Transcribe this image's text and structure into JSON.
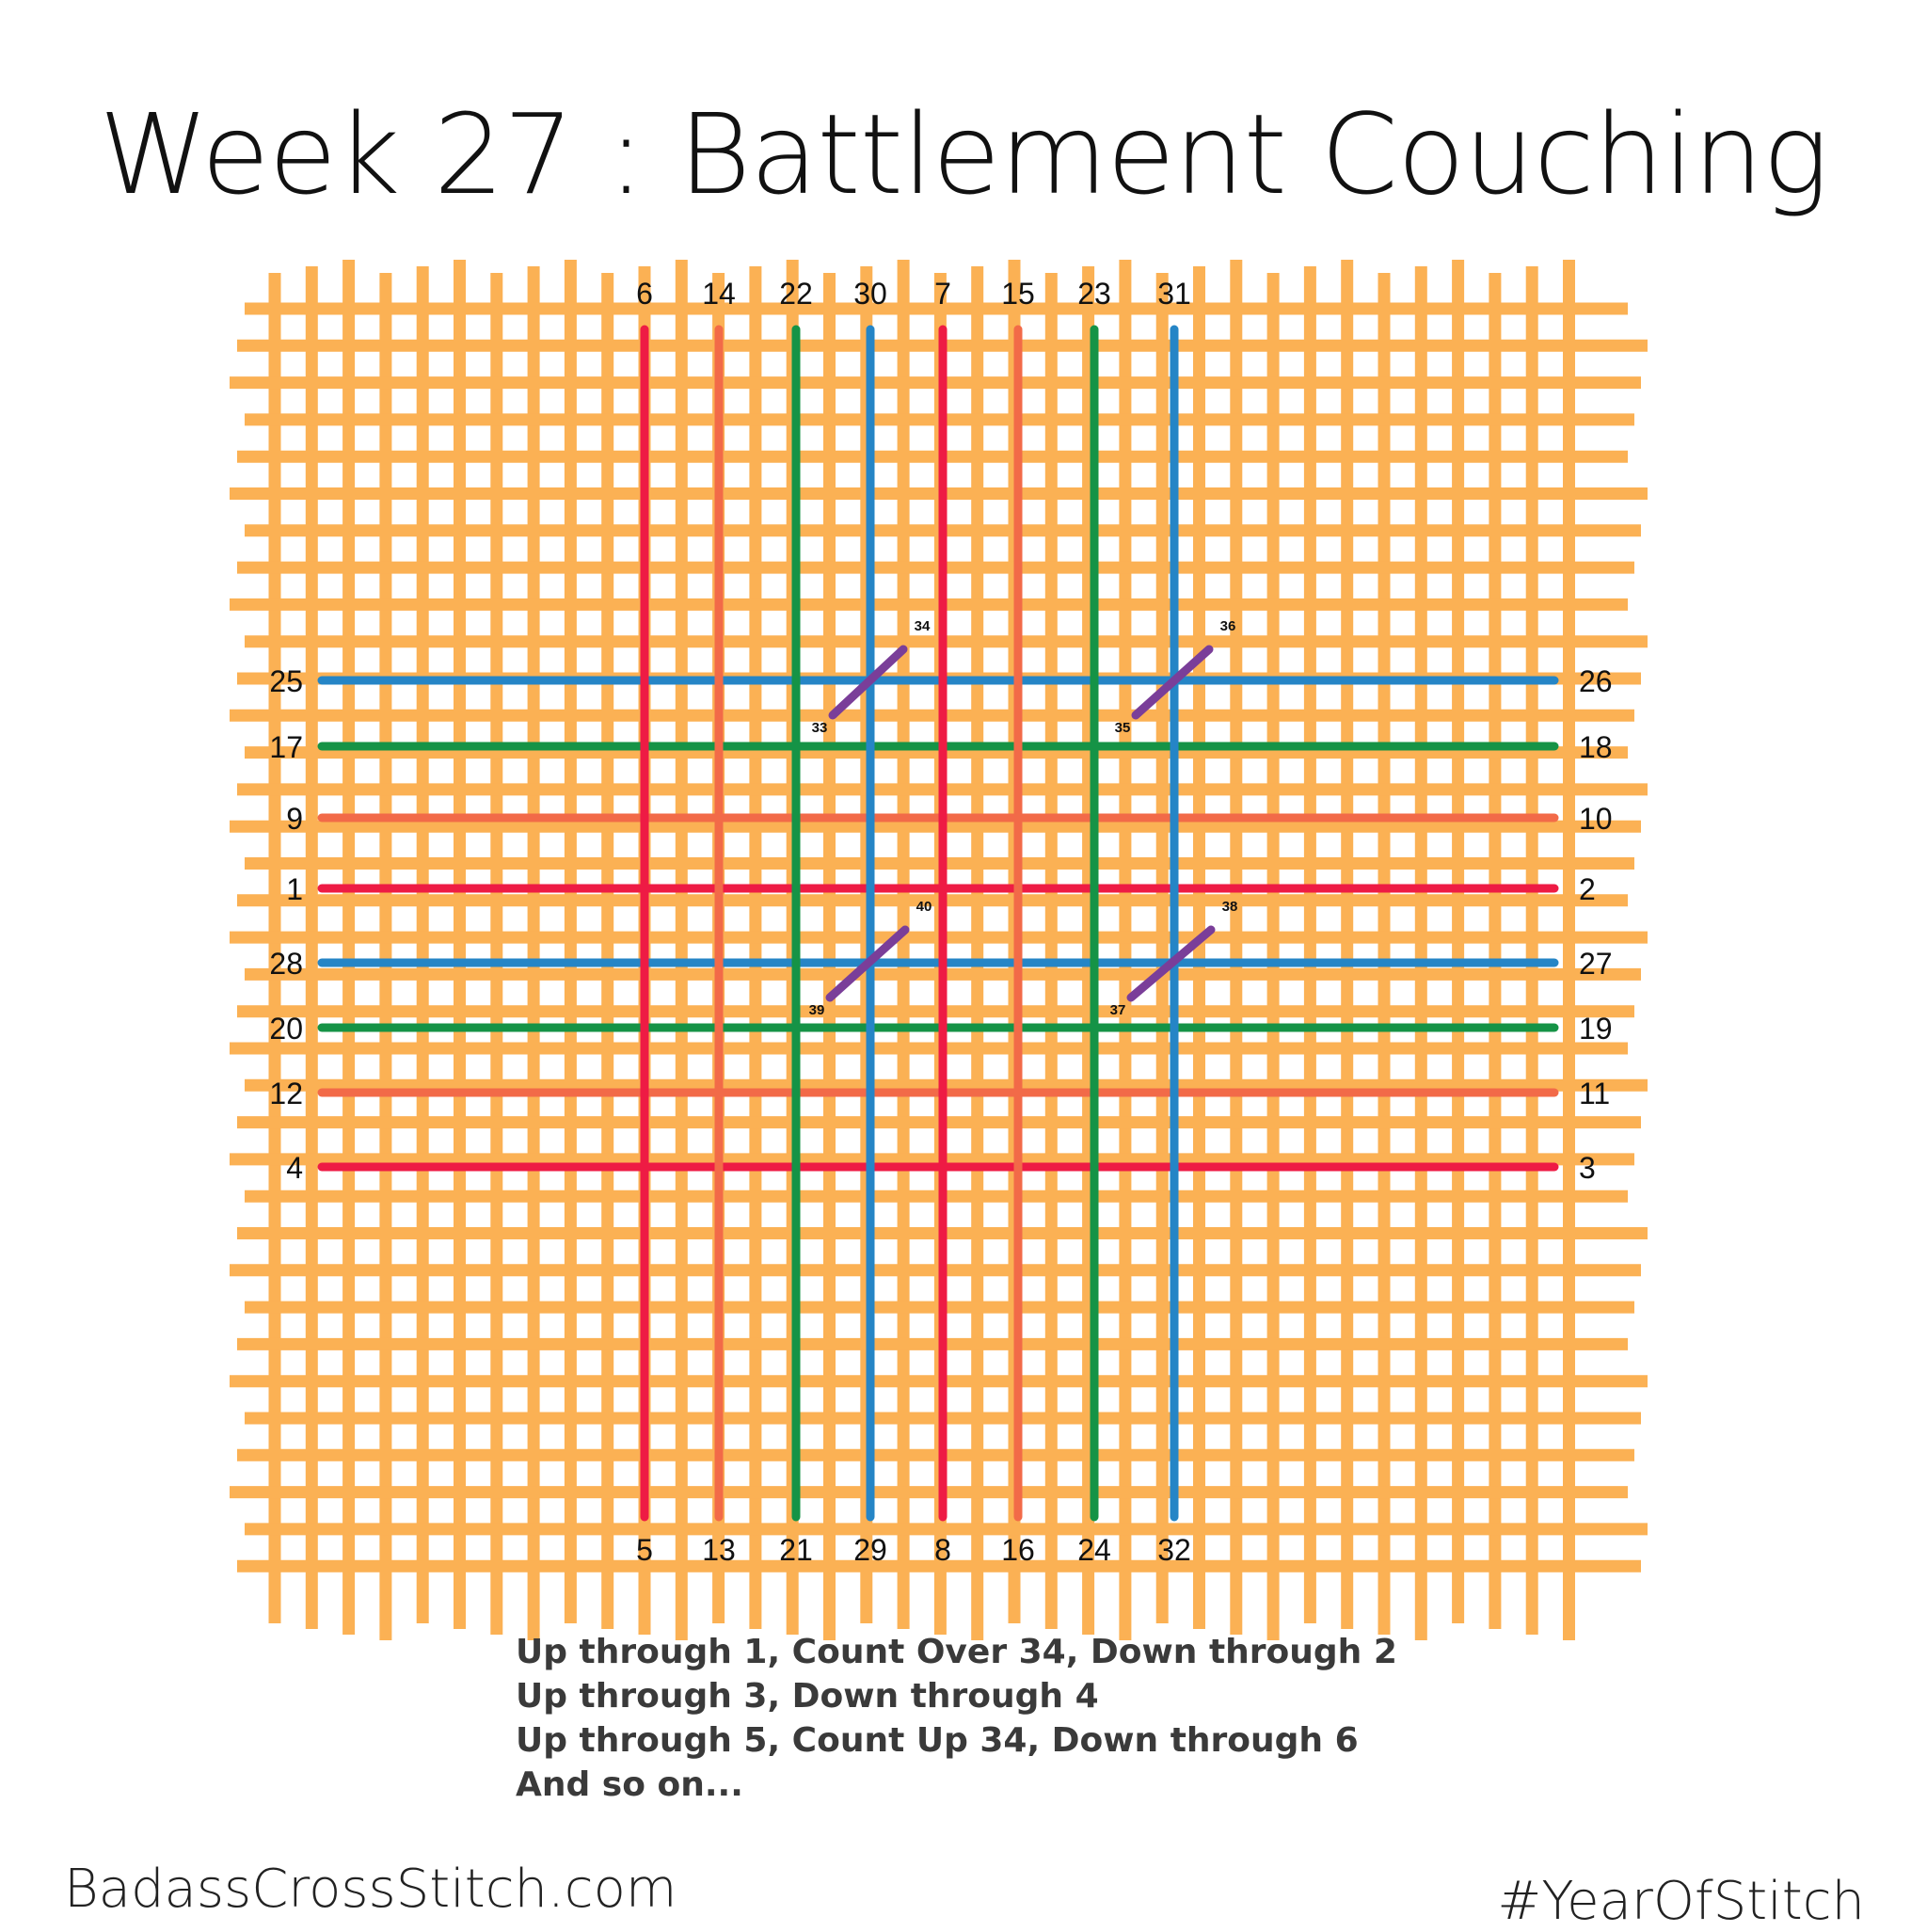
{
  "title": "Week 27 : Battlement Couching",
  "colors": {
    "canvas": "#fbb154",
    "red": "#ee1b44",
    "coral": "#f26a48",
    "green": "#159346",
    "blue": "#2585c6",
    "purple": "#7a3e99",
    "background": "#ffffff"
  },
  "vertical_stitches": [
    {
      "top": "6",
      "bottom": "5",
      "color": "red"
    },
    {
      "top": "14",
      "bottom": "13",
      "color": "coral"
    },
    {
      "top": "22",
      "bottom": "21",
      "color": "green"
    },
    {
      "top": "30",
      "bottom": "29",
      "color": "blue"
    },
    {
      "top": "7",
      "bottom": "8",
      "color": "red"
    },
    {
      "top": "15",
      "bottom": "16",
      "color": "coral"
    },
    {
      "top": "23",
      "bottom": "24",
      "color": "green"
    },
    {
      "top": "31",
      "bottom": "32",
      "color": "blue"
    }
  ],
  "horizontal_stitches": [
    {
      "left": "25",
      "right": "26",
      "color": "blue"
    },
    {
      "left": "17",
      "right": "18",
      "color": "green"
    },
    {
      "left": "9",
      "right": "10",
      "color": "coral"
    },
    {
      "left": "1",
      "right": "2",
      "color": "red"
    },
    {
      "left": "28",
      "right": "27",
      "color": "blue"
    },
    {
      "left": "20",
      "right": "19",
      "color": "green"
    },
    {
      "left": "12",
      "right": "11",
      "color": "coral"
    },
    {
      "left": "4",
      "right": "3",
      "color": "red"
    }
  ],
  "tie_stitches": [
    {
      "start": "33",
      "end": "34"
    },
    {
      "start": "35",
      "end": "36"
    },
    {
      "start": "39",
      "end": "40"
    },
    {
      "start": "37",
      "end": "38"
    }
  ],
  "instructions": [
    "Up through 1, Count Over 34, Down through 2",
    "Up through 3, Down through 4",
    "Up through 5, Count Up 34, Down through 6",
    "And so on..."
  ],
  "footer": {
    "website": "BadassCrossStitch.com",
    "hashtag": "#YearOfStitch"
  }
}
